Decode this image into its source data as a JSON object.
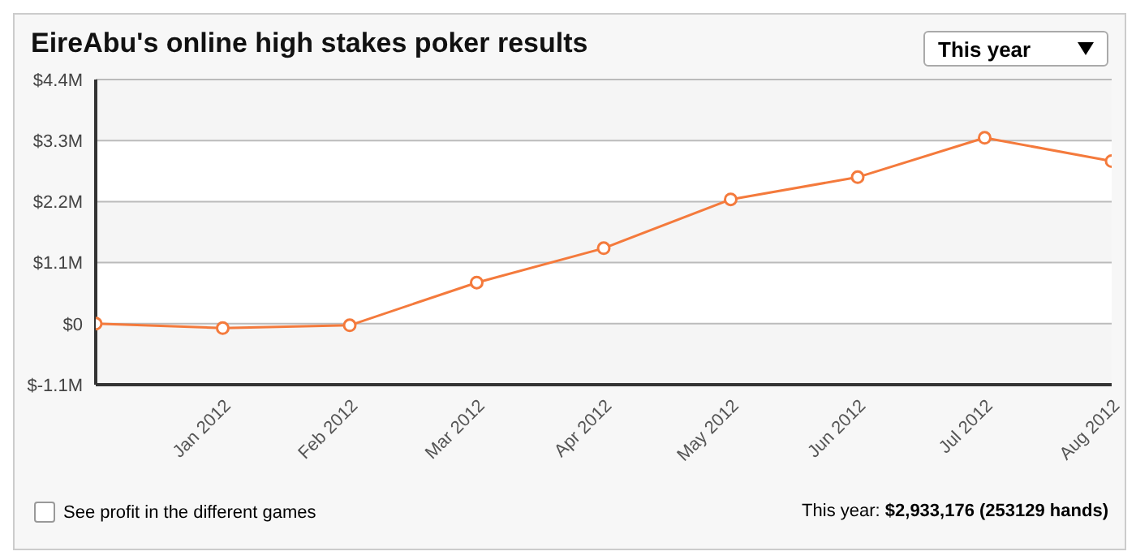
{
  "chart_data": {
    "type": "line",
    "title": "EireAbu's online high stakes poker results",
    "categories": [
      null,
      "Jan 2012",
      "Feb 2012",
      "Mar 2012",
      "Apr 2012",
      "May 2012",
      "Jun 2012",
      "Jul 2012",
      "Aug 2012"
    ],
    "series": [
      {
        "color": "#f47a3c",
        "values": [
          0,
          -0.08,
          -0.03,
          0.74,
          1.36,
          2.24,
          2.64,
          3.35,
          2.93
        ]
      }
    ],
    "ylim": [
      -1.1,
      4.4
    ],
    "yticks": [
      {
        "value": -1.1,
        "label": "$-1.1M"
      },
      {
        "value": 0,
        "label": "$0"
      },
      {
        "value": 1.1,
        "label": "$1.1M"
      },
      {
        "value": 2.2,
        "label": "$2.2M"
      },
      {
        "value": 3.3,
        "label": "$3.3M"
      },
      {
        "value": 4.4,
        "label": "$4.4M"
      }
    ],
    "grid": "y",
    "marker": "circle",
    "annotations": [
      "This year",
      "See profit in the different games",
      "This year: $2,933,176 (253129 hands)"
    ]
  }
}
